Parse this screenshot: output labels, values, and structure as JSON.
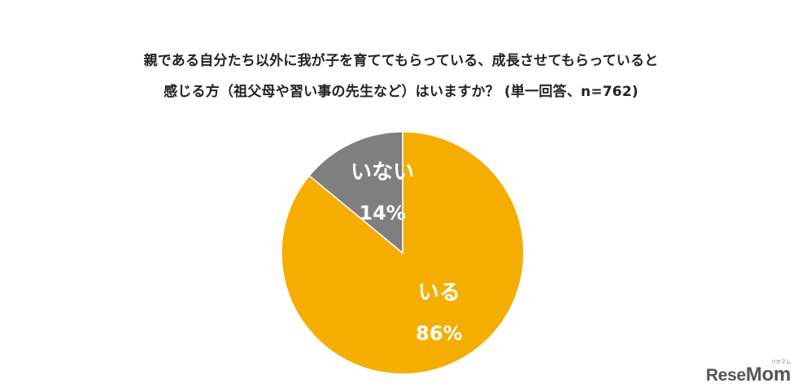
{
  "title_line1": "親である自分たち以外に我が子を育ててもらっている、成長させてもらっていると",
  "title_line2": "感じる方（祖父母や習い事の先生など）はいますか？ (単一回答、n=762)",
  "chart_data": {
    "type": "pie",
    "title": "親である自分たち以外に我が子を育ててもらっている、成長させてもらっていると感じる方（祖父母や習い事の先生など）はいますか？ (単一回答、n=762)",
    "slices": [
      {
        "label": "いる",
        "value": 86,
        "display": "86%",
        "color": "#F5AE00"
      },
      {
        "label": "いない",
        "value": 14,
        "display": "14%",
        "color": "#7F7F7F"
      }
    ],
    "start": "12 o'clock",
    "direction": "clockwise"
  },
  "logo": {
    "text_a": "Rese",
    "text_b": "Mom",
    "tagline": "リセマム"
  }
}
